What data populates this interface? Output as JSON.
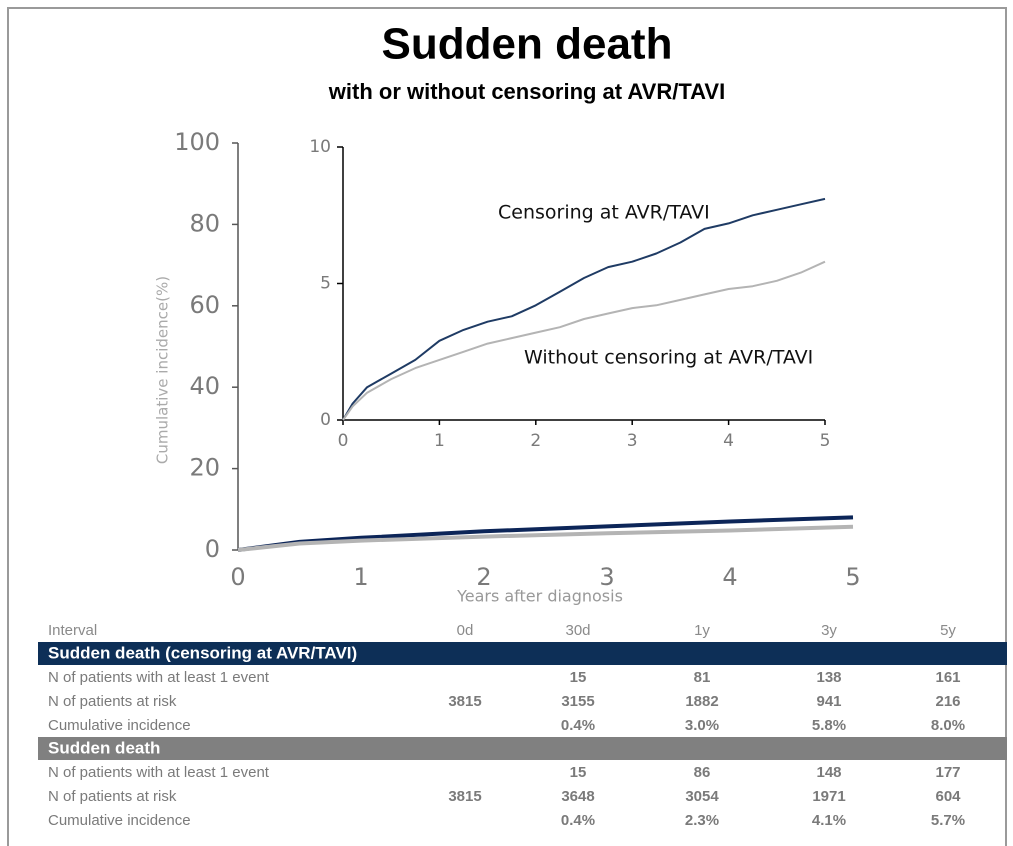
{
  "chart_data": [
    {
      "type": "line",
      "title": "Sudden death",
      "subtitle": "with or without censoring at AVR/TAVI",
      "x_label": "Years after diagnosis",
      "y_label": "Cumulative incidence(%)",
      "xlim": [
        0,
        5
      ],
      "ylim": [
        0,
        100
      ],
      "xticks": [
        0,
        1,
        2,
        3,
        4,
        5
      ],
      "yticks": [
        0,
        20,
        40,
        60,
        80,
        100
      ],
      "x": [
        0,
        0.5,
        1,
        2,
        3,
        4,
        5
      ],
      "series": [
        {
          "color": "#0c2558",
          "values": [
            0,
            2.0,
            3.0,
            4.6,
            5.8,
            7.0,
            8.0
          ]
        },
        {
          "color": "#b4b4b4",
          "values": [
            0,
            1.6,
            2.3,
            3.3,
            4.1,
            4.8,
            5.7
          ]
        }
      ]
    },
    {
      "type": "line",
      "xlim": [
        0,
        5
      ],
      "ylim": [
        0,
        10
      ],
      "xticks": [
        0,
        1,
        2,
        3,
        4,
        5
      ],
      "yticks": [
        0,
        5,
        10
      ],
      "x": [
        0,
        0.1,
        0.25,
        0.5,
        0.75,
        1,
        1.25,
        1.5,
        1.75,
        2,
        2.25,
        2.5,
        2.75,
        3,
        3.25,
        3.5,
        3.75,
        4,
        4.25,
        4.5,
        4.75,
        5
      ],
      "series": [
        {
          "name": "Censoring at AVR/TAVI",
          "color": "#1f3b64",
          "values": [
            0,
            0.6,
            1.2,
            1.7,
            2.2,
            2.9,
            3.3,
            3.6,
            3.8,
            4.2,
            4.7,
            5.2,
            5.6,
            5.8,
            6.1,
            6.5,
            7.0,
            7.2,
            7.5,
            7.7,
            7.9,
            8.1
          ]
        },
        {
          "name": "Without censoring at AVR/TAVI",
          "color": "#b4b4b4",
          "values": [
            0,
            0.5,
            1.0,
            1.5,
            1.9,
            2.2,
            2.5,
            2.8,
            3.0,
            3.2,
            3.4,
            3.7,
            3.9,
            4.1,
            4.2,
            4.4,
            4.6,
            4.8,
            4.9,
            5.1,
            5.4,
            5.8
          ]
        }
      ]
    }
  ],
  "table": {
    "header": [
      "Interval",
      "0d",
      "30d",
      "1y",
      "3y",
      "5y"
    ],
    "sections": [
      {
        "title": "Sudden death (censoring at AVR/TAVI)",
        "color": "#0d2f57",
        "rows": [
          [
            "N of patients with at least 1 event",
            null,
            "15",
            "81",
            "138",
            "161"
          ],
          [
            "N of patients at risk",
            "3815",
            "3155",
            "1882",
            "941",
            "216"
          ],
          [
            "Cumulative incidence",
            null,
            "0.4%",
            "3.0%",
            "5.8%",
            "8.0%"
          ]
        ]
      },
      {
        "title": "Sudden death",
        "color": "#808080",
        "rows": [
          [
            "N of patients with at least 1 event",
            null,
            "15",
            "86",
            "148",
            "177"
          ],
          [
            "N of patients at risk",
            "3815",
            "3648",
            "3054",
            "1971",
            "604"
          ],
          [
            "Cumulative incidence",
            null,
            "0.4%",
            "2.3%",
            "4.1%",
            "5.7%"
          ]
        ]
      }
    ]
  }
}
